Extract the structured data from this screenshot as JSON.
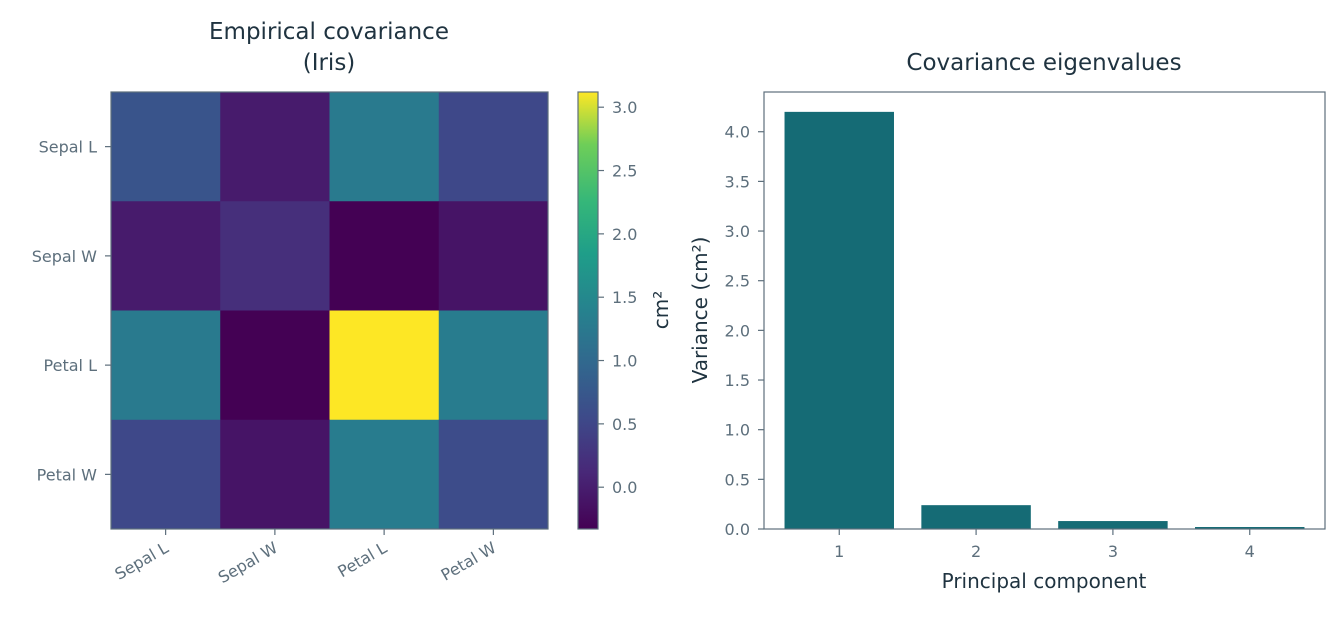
{
  "chart_data": [
    {
      "type": "heatmap",
      "title": [
        "Empirical covariance",
        "(Iris)"
      ],
      "row_labels": [
        "Sepal L",
        "Sepal W",
        "Petal L",
        "Petal W"
      ],
      "col_labels": [
        "Sepal L",
        "Sepal W",
        "Petal L",
        "Petal W"
      ],
      "values": [
        [
          0.69,
          -0.04,
          1.27,
          0.52
        ],
        [
          -0.04,
          0.19,
          -0.33,
          -0.12
        ],
        [
          1.27,
          -0.33,
          3.12,
          1.3
        ],
        [
          0.52,
          -0.12,
          1.3,
          0.58
        ]
      ],
      "colormap": "viridis",
      "vmin": -0.33,
      "vmax": 3.12,
      "colorbar_label": "cm²",
      "colorbar_ticks": [
        "0.0",
        "0.5",
        "1.0",
        "1.5",
        "2.0",
        "2.5",
        "3.0"
      ]
    },
    {
      "type": "bar",
      "title": "Covariance eigenvalues",
      "categories": [
        "1",
        "2",
        "3",
        "4"
      ],
      "values": [
        4.2,
        0.24,
        0.08,
        0.02
      ],
      "xlabel": "Principal component",
      "ylabel": "Variance (cm²)",
      "ylim": [
        0,
        4.4
      ],
      "yticks": [
        "0.0",
        "0.5",
        "1.0",
        "1.5",
        "2.0",
        "2.5",
        "3.0",
        "3.5",
        "4.0"
      ],
      "bar_color": "#156b75",
      "grid": false
    }
  ]
}
